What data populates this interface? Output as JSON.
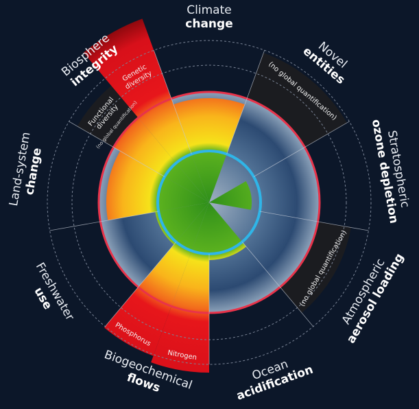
{
  "boundaries": [
    {
      "line1": "Climate",
      "line2": "change"
    },
    {
      "line1": "Novel",
      "line2": "entities"
    },
    {
      "line1": "Stratospheric",
      "line2": "ozone depletion"
    },
    {
      "line1": "Atmospheric",
      "line2": "aerosol loading"
    },
    {
      "line1": "Ocean",
      "line2": "acidification"
    },
    {
      "line1": "Biogeochemical",
      "line2": "flows"
    },
    {
      "line1": "Freshwater",
      "line2": "use"
    },
    {
      "line1": "Land-system",
      "line2": "change"
    },
    {
      "line1": "Biosphere",
      "line2": "integrity"
    }
  ],
  "sublabels": {
    "genetic": {
      "line1": "Genetic",
      "line2": "diversity"
    },
    "functional": {
      "line1": "Functional",
      "line2": "diversity",
      "note": "(no global quantification)"
    },
    "novel_note": "(no global quantification)",
    "aerosol_note": "(no global quantification)",
    "phosphorus": "Phosphorus",
    "nitrogen": "Nitrogen"
  }
}
